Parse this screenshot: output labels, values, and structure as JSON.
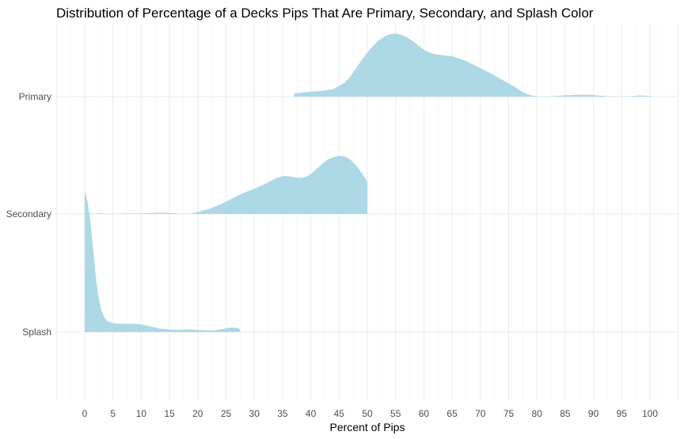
{
  "chart_data": {
    "type": "ridgeline",
    "title": "Distribution of Percentage of a Decks Pips That Are Primary, Secondary, and Splash Color",
    "xlabel": "Percent of Pips",
    "ylabel": "",
    "xlim": [
      -5,
      105
    ],
    "x_ticks": [
      0,
      5,
      10,
      15,
      20,
      25,
      30,
      35,
      40,
      45,
      50,
      55,
      60,
      65,
      70,
      75,
      80,
      85,
      90,
      95,
      100
    ],
    "grid": true,
    "fill_color": "#add8e6",
    "categories": [
      "Primary",
      "Secondary",
      "Splash"
    ],
    "series": [
      {
        "name": "Primary",
        "x": [
          37,
          38,
          40,
          42,
          44,
          46,
          47,
          48,
          49,
          50,
          51,
          52,
          53,
          54,
          55,
          56,
          57,
          58,
          59,
          60,
          61,
          62,
          63,
          64,
          65,
          66,
          67,
          68,
          70,
          72,
          74,
          76,
          77,
          78,
          79,
          80,
          81,
          82,
          83,
          84,
          85,
          86,
          87,
          88,
          89,
          90,
          91,
          92,
          93,
          94,
          95,
          96,
          97,
          98,
          99,
          100,
          100.5
        ],
        "density": [
          0.05,
          0.06,
          0.08,
          0.09,
          0.12,
          0.22,
          0.32,
          0.45,
          0.58,
          0.7,
          0.8,
          0.89,
          0.95,
          0.99,
          1.0,
          0.98,
          0.94,
          0.88,
          0.81,
          0.74,
          0.7,
          0.67,
          0.66,
          0.65,
          0.64,
          0.61,
          0.58,
          0.54,
          0.45,
          0.36,
          0.26,
          0.16,
          0.1,
          0.05,
          0.02,
          0.005,
          0.002,
          0.004,
          0.008,
          0.015,
          0.02,
          0.025,
          0.03,
          0.03,
          0.028,
          0.025,
          0.018,
          0.01,
          0.004,
          0.003,
          0.004,
          0.006,
          0.01,
          0.018,
          0.018,
          0.01,
          0.0
        ]
      },
      {
        "name": "Secondary",
        "x": [
          0,
          1,
          2,
          3,
          4,
          5,
          7,
          9,
          10,
          12,
          13,
          15,
          17,
          18,
          19,
          20,
          22,
          24,
          26,
          28,
          30,
          32,
          34,
          35,
          36,
          37,
          38,
          39,
          40,
          41,
          42,
          43,
          44,
          45,
          46,
          47,
          48,
          49,
          50
        ],
        "density": [
          0.0,
          0.01,
          0.005,
          0.01,
          0.003,
          0.004,
          0.006,
          0.01,
          0.008,
          0.015,
          0.02,
          0.015,
          0.003,
          0.002,
          0.01,
          0.03,
          0.08,
          0.15,
          0.24,
          0.33,
          0.4,
          0.48,
          0.57,
          0.6,
          0.6,
          0.58,
          0.57,
          0.58,
          0.63,
          0.71,
          0.79,
          0.86,
          0.9,
          0.92,
          0.91,
          0.86,
          0.77,
          0.65,
          0.51
        ]
      },
      {
        "name": "Splash",
        "x": [
          0,
          0.5,
          1,
          1.5,
          2,
          2.5,
          3,
          3.5,
          4,
          5,
          6,
          7,
          8,
          9,
          10,
          11,
          12,
          13,
          14,
          15,
          16,
          17,
          18,
          19,
          20,
          21,
          22,
          23,
          24,
          25,
          26,
          27,
          27.5
        ],
        "density": [
          2.24,
          2.06,
          1.76,
          1.3,
          0.85,
          0.52,
          0.33,
          0.23,
          0.17,
          0.14,
          0.13,
          0.13,
          0.13,
          0.13,
          0.12,
          0.1,
          0.08,
          0.06,
          0.05,
          0.04,
          0.035,
          0.035,
          0.04,
          0.04,
          0.035,
          0.03,
          0.025,
          0.025,
          0.04,
          0.06,
          0.07,
          0.065,
          0.04
        ]
      }
    ]
  }
}
